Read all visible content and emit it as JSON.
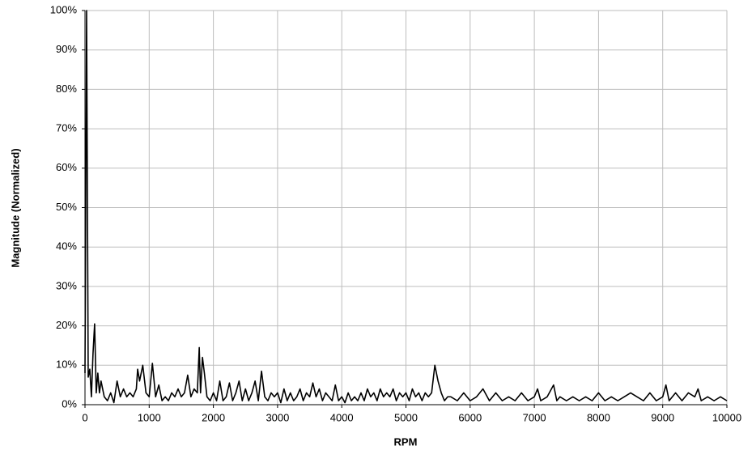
{
  "chart_data": {
    "type": "line",
    "xlabel": "RPM",
    "ylabel": "Magnitude (Normalized)",
    "x": [
      0,
      25,
      50,
      75,
      100,
      125,
      150,
      175,
      200,
      225,
      250,
      300,
      350,
      400,
      450,
      500,
      550,
      600,
      650,
      700,
      750,
      800,
      820,
      850,
      900,
      950,
      1000,
      1050,
      1100,
      1150,
      1200,
      1250,
      1300,
      1350,
      1400,
      1450,
      1500,
      1550,
      1600,
      1650,
      1700,
      1750,
      1780,
      1800,
      1830,
      1860,
      1900,
      1950,
      2000,
      2050,
      2100,
      2150,
      2200,
      2250,
      2300,
      2350,
      2400,
      2450,
      2500,
      2550,
      2600,
      2650,
      2700,
      2750,
      2800,
      2850,
      2900,
      2950,
      3000,
      3050,
      3100,
      3150,
      3200,
      3250,
      3300,
      3350,
      3400,
      3450,
      3500,
      3550,
      3600,
      3650,
      3700,
      3750,
      3800,
      3850,
      3900,
      3950,
      4000,
      4050,
      4100,
      4150,
      4200,
      4250,
      4300,
      4350,
      4400,
      4450,
      4500,
      4550,
      4600,
      4650,
      4700,
      4750,
      4800,
      4850,
      4900,
      4950,
      5000,
      5050,
      5100,
      5150,
      5200,
      5250,
      5300,
      5350,
      5400,
      5450,
      5500,
      5550,
      5600,
      5650,
      5700,
      5800,
      5900,
      6000,
      6100,
      6200,
      6300,
      6400,
      6500,
      6600,
      6700,
      6800,
      6900,
      7000,
      7050,
      7100,
      7200,
      7300,
      7350,
      7400,
      7500,
      7600,
      7700,
      7800,
      7900,
      8000,
      8100,
      8200,
      8300,
      8400,
      8500,
      8600,
      8700,
      8800,
      8900,
      9000,
      9050,
      9100,
      9200,
      9300,
      9400,
      9500,
      9550,
      9600,
      9700,
      9800,
      9900,
      10000
    ],
    "values": [
      8,
      100,
      7,
      9,
      2,
      13,
      20.5,
      3,
      8,
      3,
      6,
      2,
      1,
      3,
      0.5,
      6,
      2,
      4,
      2,
      3,
      2,
      4,
      9,
      6,
      10,
      3,
      2,
      10.5,
      2,
      5,
      1,
      2,
      1,
      3,
      2,
      4,
      2,
      3,
      7.5,
      2,
      4,
      3,
      14.5,
      3,
      12,
      8,
      2,
      1,
      3,
      1,
      6,
      1,
      2,
      5.5,
      1,
      3,
      6,
      1,
      4,
      1,
      3,
      6,
      1,
      8.5,
      2,
      1,
      3,
      2,
      3,
      0.5,
      4,
      1,
      3,
      1,
      2,
      4,
      1,
      3,
      2,
      5.5,
      2,
      4,
      1,
      3,
      2,
      1,
      5,
      1,
      2,
      0.5,
      3,
      1,
      2,
      1,
      3,
      1,
      4,
      2,
      3,
      1,
      4,
      2,
      3,
      2,
      4,
      1,
      3,
      2,
      3,
      1,
      4,
      2,
      3,
      1,
      3,
      2,
      3,
      10,
      6,
      3,
      1,
      2,
      2,
      1,
      3,
      1,
      2,
      4,
      1,
      3,
      1,
      2,
      1,
      3,
      1,
      2,
      4,
      1,
      2,
      5,
      1,
      2,
      1,
      2,
      1,
      2,
      1,
      3,
      1,
      2,
      1,
      2,
      3,
      2,
      1,
      3,
      1,
      2,
      5,
      1,
      3,
      1,
      3,
      2,
      4,
      1,
      2,
      1,
      2,
      1
    ],
    "color": "#000000",
    "xlim": [
      0,
      10000
    ],
    "ylim": [
      0,
      100
    ],
    "xticks": [
      0,
      1000,
      2000,
      3000,
      4000,
      5000,
      6000,
      7000,
      8000,
      9000,
      10000
    ],
    "yticks": [
      {
        "value": 0,
        "label": "0%"
      },
      {
        "value": 10,
        "label": "10%"
      },
      {
        "value": 20,
        "label": "20%"
      },
      {
        "value": 30,
        "label": "30%"
      },
      {
        "value": 40,
        "label": "40%"
      },
      {
        "value": 50,
        "label": "50%"
      },
      {
        "value": 60,
        "label": "60%"
      },
      {
        "value": 70,
        "label": "70%"
      },
      {
        "value": 80,
        "label": "80%"
      },
      {
        "value": 90,
        "label": "90%"
      },
      {
        "value": 100,
        "label": "100%"
      }
    ],
    "grid": true
  }
}
